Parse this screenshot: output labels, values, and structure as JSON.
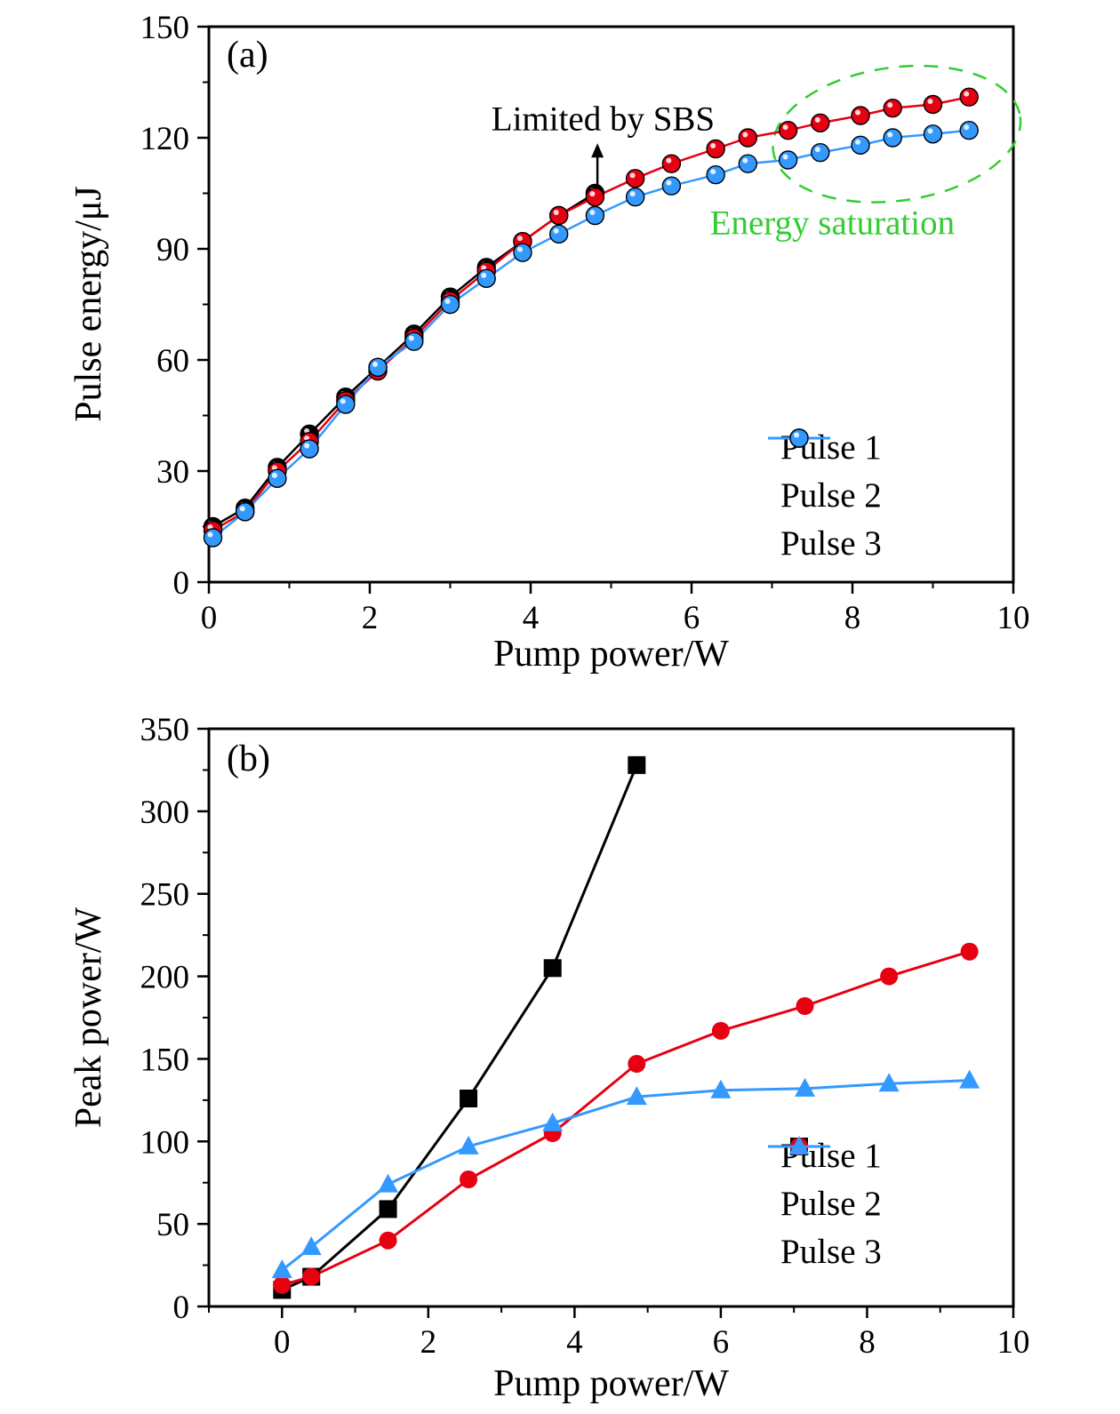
{
  "figure": {
    "background": "#ffffff"
  },
  "chart_data": [
    {
      "panel_label": "(a)",
      "type": "line",
      "xlabel": "Pump power/W",
      "ylabel": "Pulse energy/μJ",
      "xlim": [
        0,
        10
      ],
      "ylim": [
        0,
        150
      ],
      "xticks": [
        0,
        2,
        4,
        6,
        8,
        10
      ],
      "yticks": [
        0,
        30,
        60,
        90,
        120,
        150
      ],
      "x_minor_step": 1,
      "y_minor_step": 15,
      "grid": false,
      "legend_position": "lower right",
      "series": [
        {
          "name": "Pulse 1",
          "color": "#000000",
          "marker": "sphere",
          "x": [
            0.05,
            0.45,
            0.85,
            1.25,
            1.7,
            2.1,
            2.55,
            3.0,
            3.45,
            3.9,
            4.35,
            4.8
          ],
          "y": [
            15,
            20,
            31,
            40,
            50,
            58,
            67,
            77,
            85,
            92,
            99,
            105
          ]
        },
        {
          "name": "Pulse 2",
          "color": "#e60012",
          "marker": "sphere",
          "x": [
            0.05,
            0.45,
            0.85,
            1.25,
            1.7,
            2.1,
            2.55,
            3.0,
            3.45,
            3.9,
            4.35,
            4.8,
            5.3,
            5.75,
            6.3,
            6.7,
            7.2,
            7.6,
            8.1,
            8.5,
            9.0,
            9.45
          ],
          "y": [
            14,
            19,
            30,
            38,
            49,
            57,
            66,
            76,
            84,
            92,
            99,
            104,
            109,
            113,
            117,
            120,
            122,
            124,
            126,
            128,
            129,
            131
          ]
        },
        {
          "name": "Pulse 3",
          "color": "#3399ff",
          "marker": "sphere",
          "x": [
            0.05,
            0.45,
            0.85,
            1.25,
            1.7,
            2.1,
            2.55,
            3.0,
            3.45,
            3.9,
            4.35,
            4.8,
            5.3,
            5.75,
            6.3,
            6.7,
            7.2,
            7.6,
            8.1,
            8.5,
            9.0,
            9.45
          ],
          "y": [
            12,
            19,
            28,
            36,
            48,
            58,
            65,
            75,
            82,
            89,
            94,
            99,
            104,
            107,
            110,
            113,
            114,
            116,
            118,
            120,
            121,
            122
          ]
        }
      ],
      "annotations": {
        "sbs_label": {
          "text": "Limited by SBS",
          "x": 4.9,
          "y": 122,
          "color": "#000000"
        },
        "arrow": {
          "x": 4.83,
          "y_from": 107,
          "y_to": 118.5,
          "color": "#000000"
        },
        "saturation_label": {
          "text": "Energy saturation",
          "x": 7.75,
          "y": 94,
          "color": "#33cc33"
        },
        "ellipse": {
          "cx": 8.55,
          "cy": 121,
          "rx_units": 1.55,
          "ry_units": 18,
          "rotation": -8,
          "color": "#33cc33"
        }
      }
    },
    {
      "panel_label": "(b)",
      "type": "line",
      "xlabel": "Pump power/W",
      "ylabel": "Peak power/W",
      "xlim": [
        -1,
        10
      ],
      "ylim": [
        0,
        350
      ],
      "xticks": [
        0,
        2,
        4,
        6,
        8,
        10
      ],
      "yticks": [
        0,
        50,
        100,
        150,
        200,
        250,
        300,
        350
      ],
      "x_minor_step": 1,
      "y_minor_step": 25,
      "grid": false,
      "legend_position": "lower right",
      "series": [
        {
          "name": "Pulse 1",
          "color": "#000000",
          "marker": "square",
          "x": [
            0.0,
            0.4,
            1.45,
            2.55,
            3.7,
            4.85
          ],
          "y": [
            10,
            18,
            59,
            126,
            205,
            328
          ]
        },
        {
          "name": "Pulse 2",
          "color": "#e60012",
          "marker": "circle",
          "x": [
            0.0,
            0.4,
            1.45,
            2.55,
            3.7,
            4.85,
            6.0,
            7.15,
            8.3,
            9.4
          ],
          "y": [
            13,
            18,
            40,
            77,
            105,
            147,
            167,
            182,
            200,
            215
          ]
        },
        {
          "name": "Pulse 3",
          "color": "#3399ff",
          "marker": "triangle",
          "x": [
            0.0,
            0.4,
            1.45,
            2.55,
            3.7,
            4.85,
            6.0,
            7.15,
            8.3,
            9.4
          ],
          "y": [
            22,
            36,
            74,
            97,
            111,
            127,
            131,
            132,
            135,
            137
          ]
        }
      ],
      "annotations": {}
    }
  ]
}
